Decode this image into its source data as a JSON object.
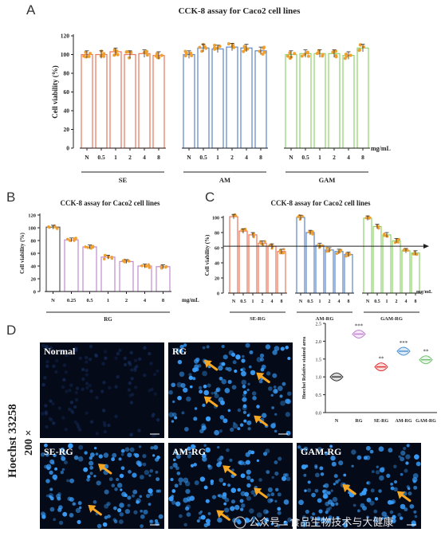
{
  "panels": {
    "A": "A",
    "B": "B",
    "C": "C",
    "D": "D"
  },
  "chart_data": [
    {
      "panel": "A",
      "type": "bar",
      "title": "CCK-8 assay for Caco2 cell lines",
      "ylabel": "Cell viability (%)",
      "xunit": "mg/mL",
      "ylim": [
        0,
        120
      ],
      "yticks": [
        0,
        20,
        40,
        60,
        80,
        100,
        120
      ],
      "groups": [
        {
          "name": "SE",
          "color": "#e8765a",
          "categories": [
            "N",
            "0.5",
            "1",
            "2",
            "4",
            "8"
          ],
          "values": [
            100,
            100,
            103,
            100,
            101,
            99
          ]
        },
        {
          "name": "AM",
          "color": "#5b86c8",
          "categories": [
            "N",
            "0.5",
            "1",
            "2",
            "4",
            "8"
          ],
          "values": [
            100,
            107,
            106,
            108,
            107,
            104
          ]
        },
        {
          "name": "GAM",
          "color": "#8fd16a",
          "categories": [
            "N",
            "0.5",
            "1",
            "2",
            "4",
            "8"
          ],
          "values": [
            100,
            101,
            101,
            101,
            99,
            107
          ]
        }
      ],
      "point_color": "#f0a030"
    },
    {
      "panel": "B",
      "type": "bar",
      "title": "CCK-8 assay for Caco2 cell lines",
      "ylabel": "Cell viability  (%)",
      "xunit": "mg/mL",
      "ylim": [
        0,
        120
      ],
      "yticks": [
        0,
        20,
        40,
        60,
        80,
        100,
        120
      ],
      "groups": [
        {
          "name": "RG",
          "color": "#c08ad0",
          "categories": [
            "N",
            "0.25",
            "0.5",
            "1",
            "2",
            "4",
            "8"
          ],
          "values": [
            101,
            81,
            70,
            54,
            47,
            40,
            39
          ]
        }
      ],
      "first_bar_color": "#555555",
      "point_color": "#f0a030"
    },
    {
      "panel": "C",
      "type": "bar",
      "title": "CCK-8 assay for Caco2 cell lines",
      "ylabel": "Cell viability  (%)",
      "xunit": "mg/mL",
      "ylim": [
        0,
        100
      ],
      "yticks": [
        0,
        20,
        40,
        60,
        80,
        100
      ],
      "reference_line": 62,
      "groups": [
        {
          "name": "SE-RG",
          "color": "#e8765a",
          "categories": [
            "N",
            "0.5",
            "1",
            "2",
            "4",
            "8"
          ],
          "values": [
            101,
            82,
            77,
            66,
            62,
            55
          ]
        },
        {
          "name": "AM-RG",
          "color": "#5b86c8",
          "categories": [
            "N",
            "0.5",
            "1",
            "2",
            "4",
            "8"
          ],
          "values": [
            100,
            80,
            63,
            57,
            55,
            51
          ]
        },
        {
          "name": "GAM-RG",
          "color": "#8fd16a",
          "categories": [
            "N",
            "0.5",
            "1",
            "2",
            "4",
            "8"
          ],
          "values": [
            99,
            88,
            77,
            69,
            56,
            53
          ]
        }
      ],
      "point_color": "#f0a030"
    },
    {
      "panel": "D-quant",
      "type": "scatter",
      "ylabel": "Hoechst Relative stained area",
      "ylim": [
        0,
        2.5
      ],
      "yticks": [
        0,
        0.5,
        1.0,
        1.5,
        2.0,
        2.5
      ],
      "categories": [
        "N",
        "RG",
        "SE-RG",
        "AM-RG",
        "GAM-RG"
      ],
      "values": [
        1.0,
        2.2,
        1.28,
        1.72,
        1.48
      ],
      "colors": [
        "#333333",
        "#c080d0",
        "#e03030",
        "#4a90d0",
        "#70c070"
      ],
      "significance": [
        "",
        "***",
        "**",
        "***",
        "**"
      ]
    }
  ],
  "micrographs": {
    "side_label": "Hoechst 33258",
    "magnification": "200 ×",
    "tiles": [
      {
        "label": "Normal",
        "arrows": 0
      },
      {
        "label": "RG",
        "arrows": 4
      },
      {
        "label": "SE-RG",
        "arrows": 2
      },
      {
        "label": "AM-RG",
        "arrows": 3
      },
      {
        "label": "GAM-RG",
        "arrows": 2
      }
    ]
  },
  "watermark": {
    "text": "公众号 · 食品生物技术与大健康"
  }
}
